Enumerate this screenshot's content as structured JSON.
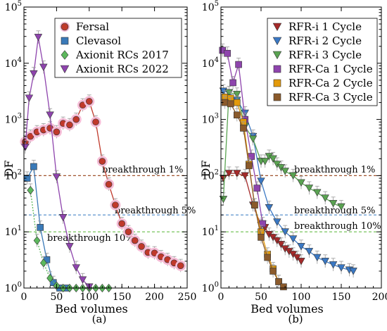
{
  "chart_data": [
    {
      "panel_label": "(a)",
      "type": "scatter",
      "xlabel": "Bed volumes",
      "ylabel": "DF",
      "xlim": [
        0,
        250
      ],
      "ylim": [
        1,
        100000
      ],
      "yscale": "log",
      "xticks": [
        "0",
        "50",
        "100",
        "150",
        "200",
        "250"
      ],
      "yticks": [
        "10^0",
        "10^1",
        "10^2",
        "10^3",
        "10^4",
        "10^5"
      ],
      "legend_position": "top-right",
      "series": [
        {
          "name": "Fersal",
          "marker": "circle",
          "color": "#c0392b",
          "halo": "#f6bcd6",
          "x": [
            2,
            10,
            20,
            30,
            40,
            50,
            60,
            70,
            80,
            90,
            100,
            110,
            120,
            130,
            140,
            150,
            160,
            170,
            180,
            190,
            200,
            210,
            220,
            230,
            240
          ],
          "y": [
            400,
            500,
            600,
            650,
            700,
            600,
            850,
            800,
            1000,
            1800,
            2100,
            900,
            180,
            70,
            30,
            14,
            10,
            7,
            5.5,
            4.3,
            4.2,
            3.6,
            3.2,
            2.8,
            2.5
          ]
        },
        {
          "name": "Clevasol",
          "marker": "square",
          "color": "#3a7ab8",
          "x": [
            5,
            15,
            25,
            35,
            45,
            55,
            65
          ],
          "y": [
            90,
            145,
            12,
            3.2,
            1.25,
            1.0,
            1.0
          ]
        },
        {
          "name": "Axionit RCs 2017",
          "marker": "diamond",
          "color": "#5cb85c",
          "x": [
            10,
            20,
            30,
            40,
            50,
            60,
            70,
            80,
            90,
            100,
            110,
            120,
            130
          ],
          "y": [
            55,
            7,
            2.8,
            1.5,
            1.1,
            1.0,
            1.0,
            1.0,
            1.0,
            1.0,
            1.0,
            1.0,
            1.0
          ]
        },
        {
          "name": "Axionit RCs 2022",
          "marker": "triangle-down",
          "color": "#8e44ad",
          "x": [
            2,
            8,
            15,
            22,
            30,
            40,
            50,
            60,
            70,
            80,
            90,
            100
          ],
          "y": [
            320,
            2400,
            6500,
            29000,
            8500,
            1200,
            95,
            18,
            5.5,
            2.3,
            1.4,
            1.05
          ]
        }
      ],
      "reference_lines": [
        {
          "label": "breakthrough 1%",
          "y": 100,
          "color": "#a0522d"
        },
        {
          "label": "breakthrough 5%",
          "y": 20,
          "color": "#4a86c8"
        },
        {
          "label": "breakthrough 10%",
          "y": 10,
          "color": "#6abf4b"
        }
      ]
    },
    {
      "panel_label": "(b)",
      "type": "scatter",
      "xlabel": "Bed volumes",
      "ylabel": "DF",
      "xlim": [
        0,
        200
      ],
      "ylim": [
        1,
        100000
      ],
      "yscale": "log",
      "xticks": [
        "0",
        "50",
        "100",
        "150",
        "200"
      ],
      "yticks": [
        "10^0",
        "10^1",
        "10^2",
        "10^3",
        "10^4",
        "10^5"
      ],
      "legend_position": "top-right",
      "series": [
        {
          "name": "RFR-i 1 Cycle",
          "marker": "triangle-down",
          "color": "#a52a2a",
          "x": [
            3,
            10,
            20,
            30,
            40,
            50,
            55,
            60,
            65,
            70,
            75,
            80,
            85,
            90,
            95,
            100
          ],
          "y": [
            90,
            110,
            110,
            100,
            30,
            13,
            12,
            9,
            8,
            7,
            6,
            5,
            4.5,
            4,
            3.5,
            3
          ]
        },
        {
          "name": "RFR-i 2 Cycle",
          "marker": "triangle-down",
          "color": "#3a78c4",
          "x": [
            3,
            10,
            20,
            30,
            40,
            50,
            60,
            70,
            80,
            90,
            100,
            110,
            120,
            130,
            140,
            150,
            160,
            165
          ],
          "y": [
            3200,
            3000,
            2200,
            1300,
            500,
            80,
            27,
            15,
            10,
            7.5,
            5.5,
            4.5,
            3.5,
            3,
            2.6,
            2.3,
            2.1,
            2.0
          ]
        },
        {
          "name": "RFR-i 3 Cycle",
          "marker": "triangle-down",
          "color": "#5aa352",
          "x": [
            3,
            10,
            20,
            30,
            40,
            50,
            55,
            60,
            65,
            70,
            75,
            80,
            90,
            100,
            110,
            120,
            130,
            140,
            150
          ],
          "y": [
            38,
            3000,
            2800,
            750,
            450,
            180,
            180,
            220,
            200,
            160,
            140,
            120,
            100,
            75,
            60,
            50,
            40,
            32,
            28
          ]
        },
        {
          "name": "RFR-Ca 1 Cycle",
          "marker": "square",
          "color": "#8e44ad",
          "x": [
            2,
            8,
            15,
            22,
            30,
            38,
            45,
            52
          ],
          "y": [
            17000,
            15000,
            4500,
            9500,
            1000,
            220,
            60,
            14
          ]
        },
        {
          "name": "RFR-Ca 2 Cycle",
          "marker": "square",
          "color": "#e39a0b",
          "x": [
            5,
            12,
            20,
            28,
            35,
            42,
            50,
            58,
            65,
            72
          ],
          "y": [
            2500,
            2400,
            2000,
            900,
            160,
            30,
            10,
            4,
            2.2,
            1.3
          ]
        },
        {
          "name": "RFR-Ca 3 Cycle",
          "marker": "square",
          "color": "#8b5a2b",
          "x": [
            5,
            12,
            20,
            28,
            35,
            42,
            50,
            58,
            65,
            72,
            78
          ],
          "y": [
            2000,
            1900,
            1200,
            700,
            150,
            30,
            8,
            3.5,
            2,
            1.3,
            1.05
          ]
        }
      ],
      "reference_lines": [
        {
          "label": "breakthrough 1%",
          "y": 100,
          "color": "#a0522d"
        },
        {
          "label": "breakthrough 5%",
          "y": 20,
          "color": "#4a86c8"
        },
        {
          "label": "breakthrough 10%",
          "y": 10,
          "color": "#6abf4b"
        }
      ]
    }
  ]
}
